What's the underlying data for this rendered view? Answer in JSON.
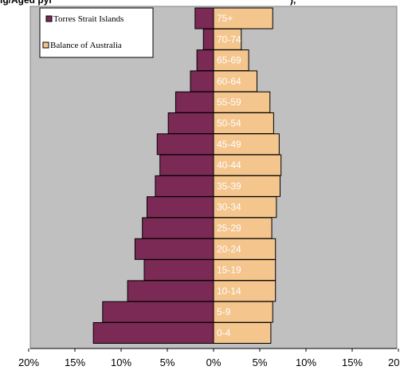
{
  "chart_data": {
    "type": "bar",
    "orientation": "horizontal",
    "title": "",
    "xlabel": "",
    "ylabel": "",
    "categories": [
      "75+",
      "70-74",
      "65-69",
      "60-64",
      "55-59",
      "50-54",
      "45-49",
      "40-44",
      "35-39",
      "30-34",
      "25-29",
      "20-24",
      "15-19",
      "10-14",
      "5-9",
      "0-4"
    ],
    "series": [
      {
        "name": "Torres Strait Islands",
        "side": "left",
        "color": "#7a2a55",
        "values": [
          2.0,
          1.1,
          1.8,
          2.5,
          4.1,
          4.9,
          6.1,
          5.8,
          6.3,
          7.2,
          7.7,
          8.5,
          7.5,
          9.3,
          12.0,
          13.0
        ]
      },
      {
        "name": "Balance of Australia",
        "side": "right",
        "color": "#f4c58d",
        "values": [
          6.4,
          3.0,
          3.8,
          4.7,
          6.1,
          6.5,
          7.1,
          7.3,
          7.2,
          6.8,
          6.3,
          6.7,
          6.7,
          6.7,
          6.4,
          6.2
        ]
      }
    ],
    "xlim": [
      -20,
      20
    ],
    "x_ticks": [
      -20,
      -15,
      -10,
      -5,
      0,
      5,
      10,
      15,
      20
    ],
    "x_tick_labels": [
      "20%",
      "15%",
      "10%",
      "5%",
      "0%",
      "5%",
      "10%",
      "15%",
      "20%"
    ],
    "plot_background": "#c0c0c0",
    "legend_position": "top-left",
    "grid": false,
    "header_fragment_left": "ig/Aged pyi",
    "header_fragment_right": "),"
  }
}
